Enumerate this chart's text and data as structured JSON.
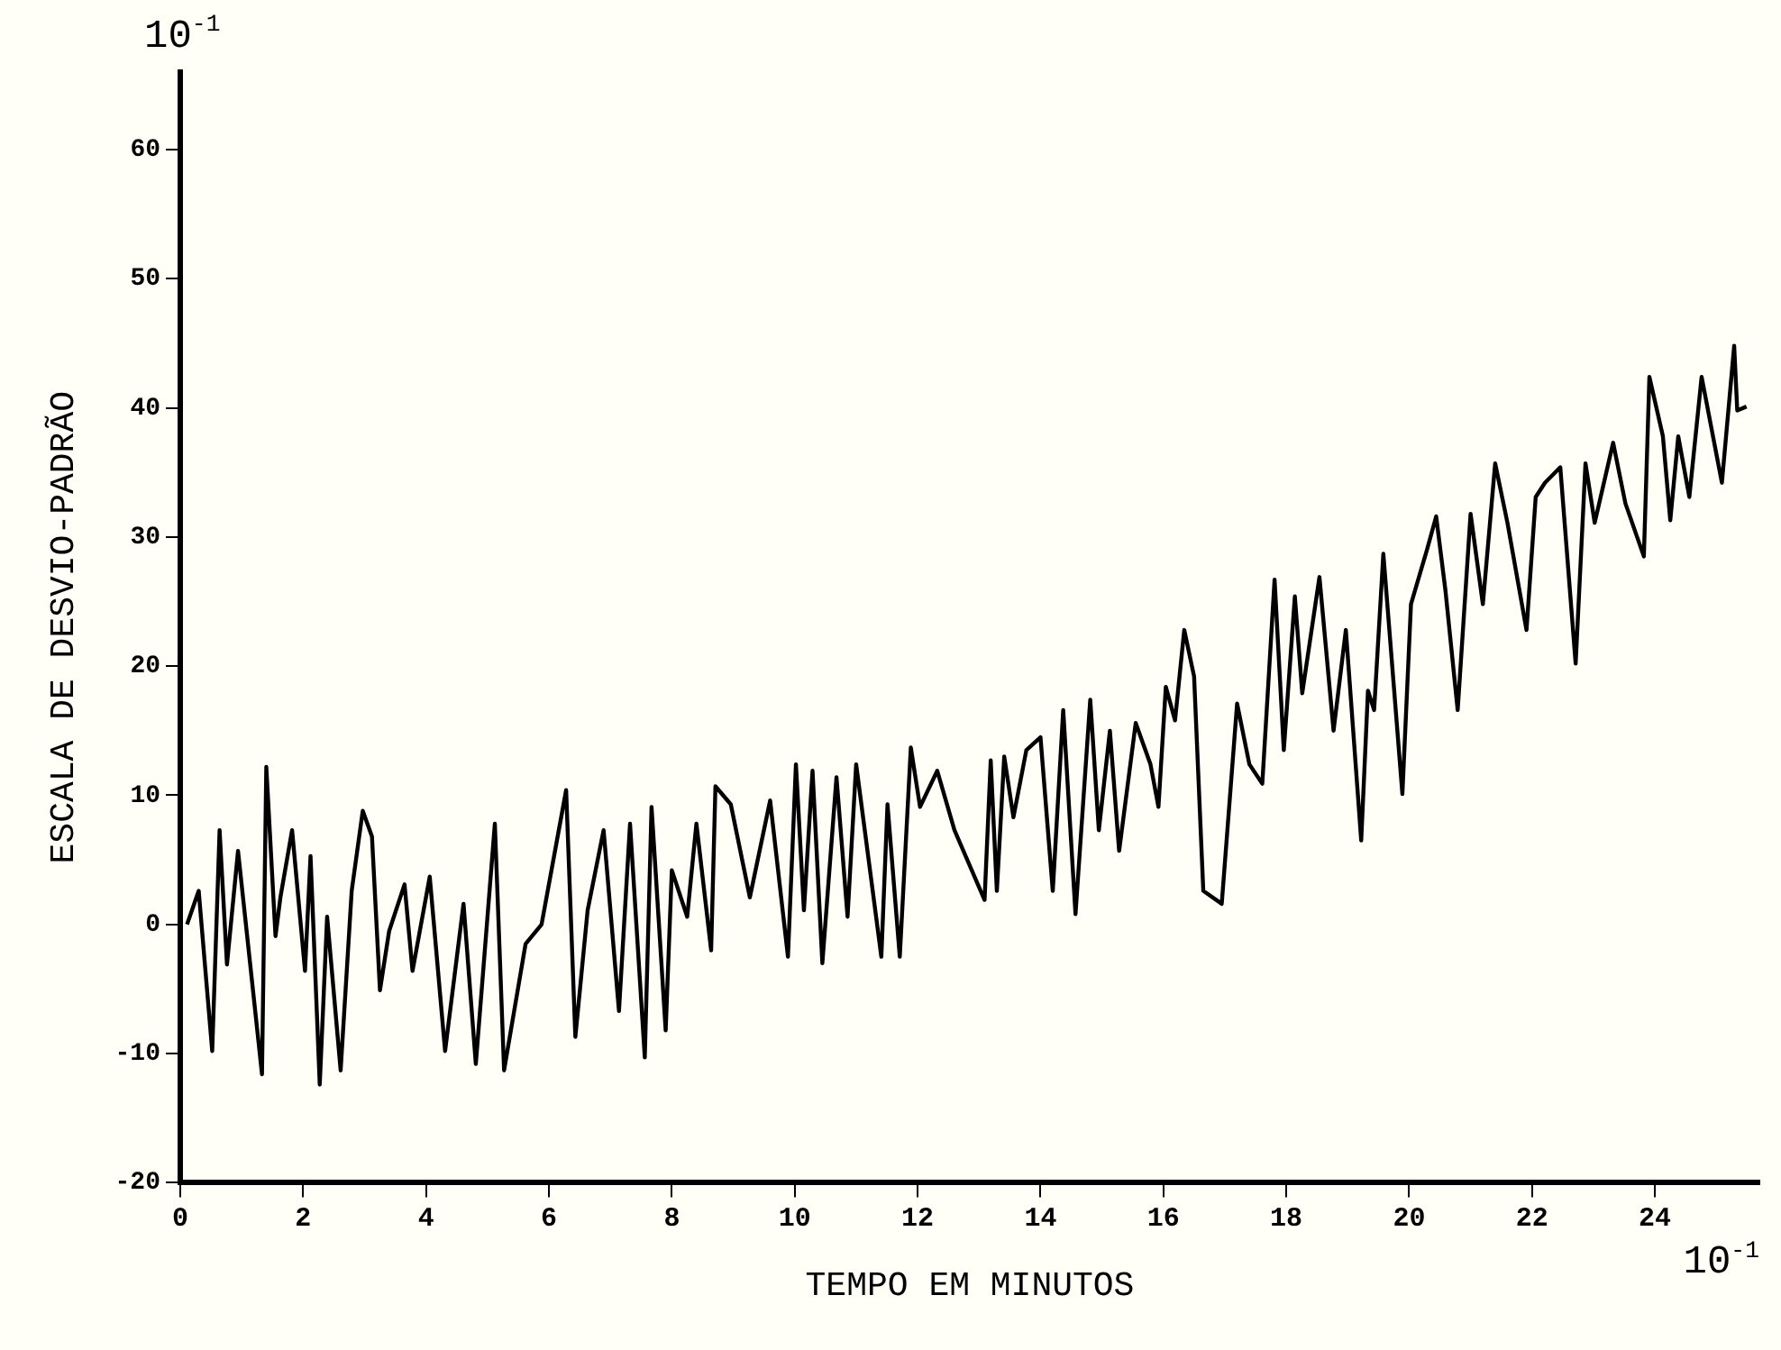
{
  "chart_data": {
    "type": "line",
    "xlabel": "TEMPO EM MINUTOS",
    "ylabel": "ESCALA DE DESVIO-PADRÃO",
    "annotations": [
      "10$^{-1}$",
      "10$^{-1}$"
    ],
    "xlim": [
      0,
      25.7
    ],
    "xticks": [
      0,
      2,
      4,
      6,
      8,
      10,
      12,
      14,
      16,
      18,
      20,
      22,
      24
    ],
    "ylim": [
      -20,
      66
    ],
    "yticks": [
      -20,
      -10,
      0,
      10,
      20,
      30,
      40,
      50,
      60
    ],
    "grid": false,
    "legend": false,
    "marker": "none",
    "line_style": "solid",
    "series": [
      {
        "color": "#000000",
        "x": [
          0.11,
          0.3,
          0.52,
          0.64,
          0.76,
          0.94,
          1.33,
          1.4,
          1.55,
          1.63,
          1.82,
          2.03,
          2.12,
          2.27,
          2.39,
          2.61,
          2.79,
          2.97,
          3.12,
          3.25,
          3.4,
          3.65,
          3.78,
          4.06,
          4.31,
          4.61,
          4.81,
          5.12,
          5.27,
          5.62,
          5.88,
          6.28,
          6.43,
          6.63,
          6.89,
          7.14,
          7.32,
          7.56,
          7.67,
          7.9,
          8.0,
          8.25,
          8.4,
          8.64,
          8.71,
          8.96,
          9.27,
          9.6,
          9.89,
          10.02,
          10.15,
          10.29,
          10.45,
          10.68,
          10.86,
          11.0,
          11.41,
          11.51,
          11.71,
          11.89,
          12.04,
          12.32,
          12.6,
          13.09,
          13.19,
          13.29,
          13.41,
          13.56,
          13.77,
          14.0,
          14.2,
          14.37,
          14.57,
          14.81,
          14.95,
          15.13,
          15.28,
          15.55,
          15.79,
          15.92,
          16.04,
          16.19,
          16.34,
          16.5,
          16.65,
          16.95,
          17.2,
          17.4,
          17.61,
          17.81,
          17.96,
          18.14,
          18.26,
          18.54,
          18.77,
          18.97,
          19.22,
          19.33,
          19.43,
          19.58,
          19.89,
          20.03,
          20.29,
          20.44,
          20.59,
          20.79,
          21.0,
          21.2,
          21.4,
          21.6,
          21.91,
          22.06,
          22.21,
          22.46,
          22.71,
          22.87,
          23.02,
          23.32,
          23.52,
          23.82,
          23.91,
          24.13,
          24.25,
          24.38,
          24.56,
          24.76,
          25.09,
          25.29,
          25.34,
          25.49
        ],
        "values": [
          0,
          2.6,
          -9.8,
          7.3,
          -3.1,
          5.7,
          -11.6,
          12.2,
          -0.9,
          2.1,
          7.3,
          -3.6,
          5.3,
          -12.4,
          0.6,
          -11.3,
          2.6,
          8.8,
          6.8,
          -5.1,
          -0.5,
          3.1,
          -3.6,
          3.7,
          -9.8,
          1.6,
          -10.8,
          7.8,
          -11.3,
          -1.5,
          0,
          10.4,
          -8.7,
          1.1,
          7.3,
          -6.7,
          7.8,
          -10.3,
          9.1,
          -8.2,
          4.2,
          0.6,
          7.8,
          -2,
          10.7,
          9.3,
          2.1,
          9.6,
          -2.5,
          12.4,
          1.1,
          11.9,
          -3,
          11.4,
          0.6,
          12.4,
          -2.5,
          9.3,
          -2.5,
          13.7,
          9.1,
          11.9,
          7.3,
          1.9,
          12.7,
          2.6,
          13,
          8.3,
          13.5,
          14.5,
          2.6,
          16.6,
          0.8,
          17.4,
          7.3,
          15,
          5.7,
          15.6,
          12.4,
          9.1,
          18.4,
          15.8,
          22.8,
          19.2,
          2.6,
          1.6,
          17.1,
          12.4,
          10.9,
          26.7,
          13.5,
          25.4,
          17.9,
          26.9,
          15,
          22.8,
          6.5,
          18.1,
          16.6,
          28.7,
          10.1,
          24.8,
          29,
          31.6,
          25.9,
          16.6,
          31.8,
          24.8,
          35.7,
          31.1,
          22.8,
          33.1,
          34.2,
          35.4,
          20.2,
          35.7,
          31.1,
          37.3,
          32.6,
          28.5,
          42.4,
          37.8,
          31.3,
          37.8,
          33.1,
          42.4,
          34.2,
          44.8,
          39.8,
          40.1
        ]
      }
    ]
  }
}
